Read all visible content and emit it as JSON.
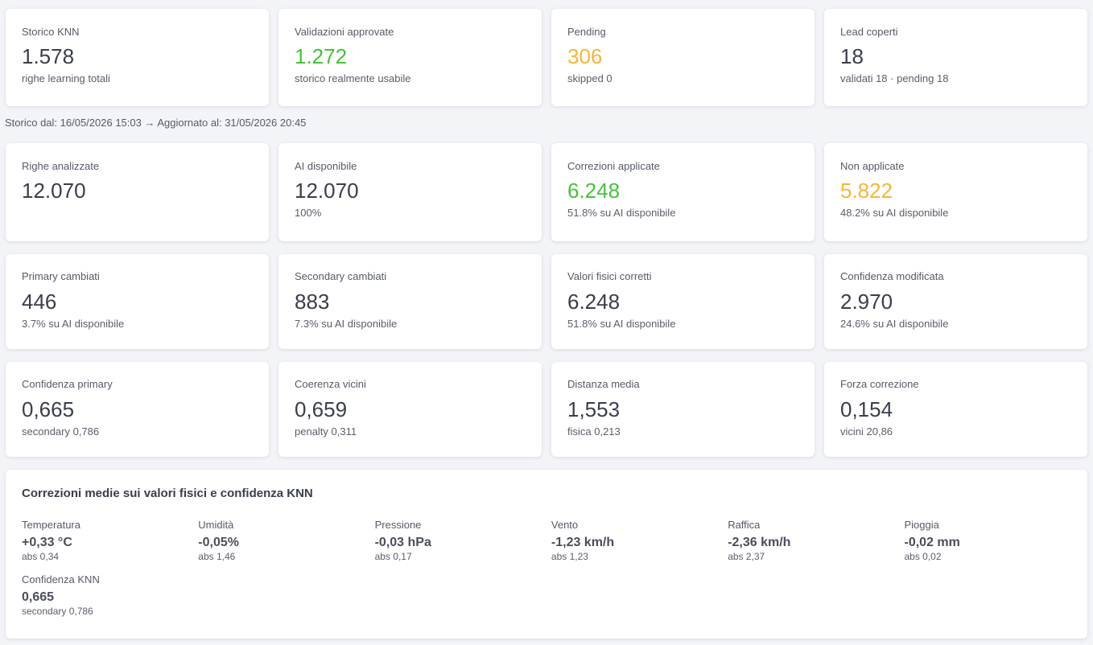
{
  "row1": [
    {
      "label": "Storico KNN",
      "value": "1.578",
      "sub": "righe learning totali"
    },
    {
      "label": "Validazioni approvate",
      "value": "1.272",
      "sub": "storico realmente usabile",
      "value_color": "#46c23a"
    },
    {
      "label": "Pending",
      "value": "306",
      "sub": "skipped 0",
      "value_color": "#f4b63a"
    },
    {
      "label": "Lead coperti",
      "value": "18",
      "sub": "validati 18 · pending 18"
    }
  ],
  "range_text": "Storico dal: 16/05/2026 15:03 → Aggiornato al: 31/05/2026 20:45",
  "row2": [
    {
      "label": "Righe analizzate",
      "value": "12.070",
      "sub": ""
    },
    {
      "label": "AI disponibile",
      "value": "12.070",
      "sub": "100%"
    },
    {
      "label": "Correzioni applicate",
      "value": "6.248",
      "sub": "51.8% su AI disponibile",
      "value_color": "#46c23a"
    },
    {
      "label": "Non applicate",
      "value": "5.822",
      "sub": "48.2% su AI disponibile",
      "value_color": "#f4b63a"
    }
  ],
  "row3": [
    {
      "label": "Primary cambiati",
      "value": "446",
      "sub": "3.7% su AI disponibile"
    },
    {
      "label": "Secondary cambiati",
      "value": "883",
      "sub": "7.3% su AI disponibile"
    },
    {
      "label": "Valori fisici corretti",
      "value": "6.248",
      "sub": "51.8% su AI disponibile"
    },
    {
      "label": "Confidenza modificata",
      "value": "2.970",
      "sub": "24.6% su AI disponibile"
    }
  ],
  "row4": [
    {
      "label": "Confidenza primary",
      "value": "0,665",
      "sub": "secondary 0,786"
    },
    {
      "label": "Coerenza vicini",
      "value": "0,659",
      "sub": "penalty 0,311"
    },
    {
      "label": "Distanza media",
      "value": "1,553",
      "sub": "fisica 0,213"
    },
    {
      "label": "Forza correzione",
      "value": "0,154",
      "sub": "vicini 20,86"
    }
  ],
  "panel": {
    "title": "Correzioni medie sui valori fisici e confidenza KNN",
    "metrics": [
      {
        "label": "Temperatura",
        "value": "+0,33 °C",
        "sub": "abs 0,34"
      },
      {
        "label": "Umidità",
        "value": "-0,05%",
        "sub": "abs 1,46"
      },
      {
        "label": "Pressione",
        "value": "-0,03 hPa",
        "sub": "abs 0,17"
      },
      {
        "label": "Vento",
        "value": "-1,23 km/h",
        "sub": "abs 1,23"
      },
      {
        "label": "Raffica",
        "value": "-2,36 km/h",
        "sub": "abs 2,37"
      },
      {
        "label": "Pioggia",
        "value": "-0,02 mm",
        "sub": "abs 0,02"
      },
      {
        "label": "Confidenza KNN",
        "value": "0,665",
        "sub": "secondary 0,786"
      }
    ]
  }
}
